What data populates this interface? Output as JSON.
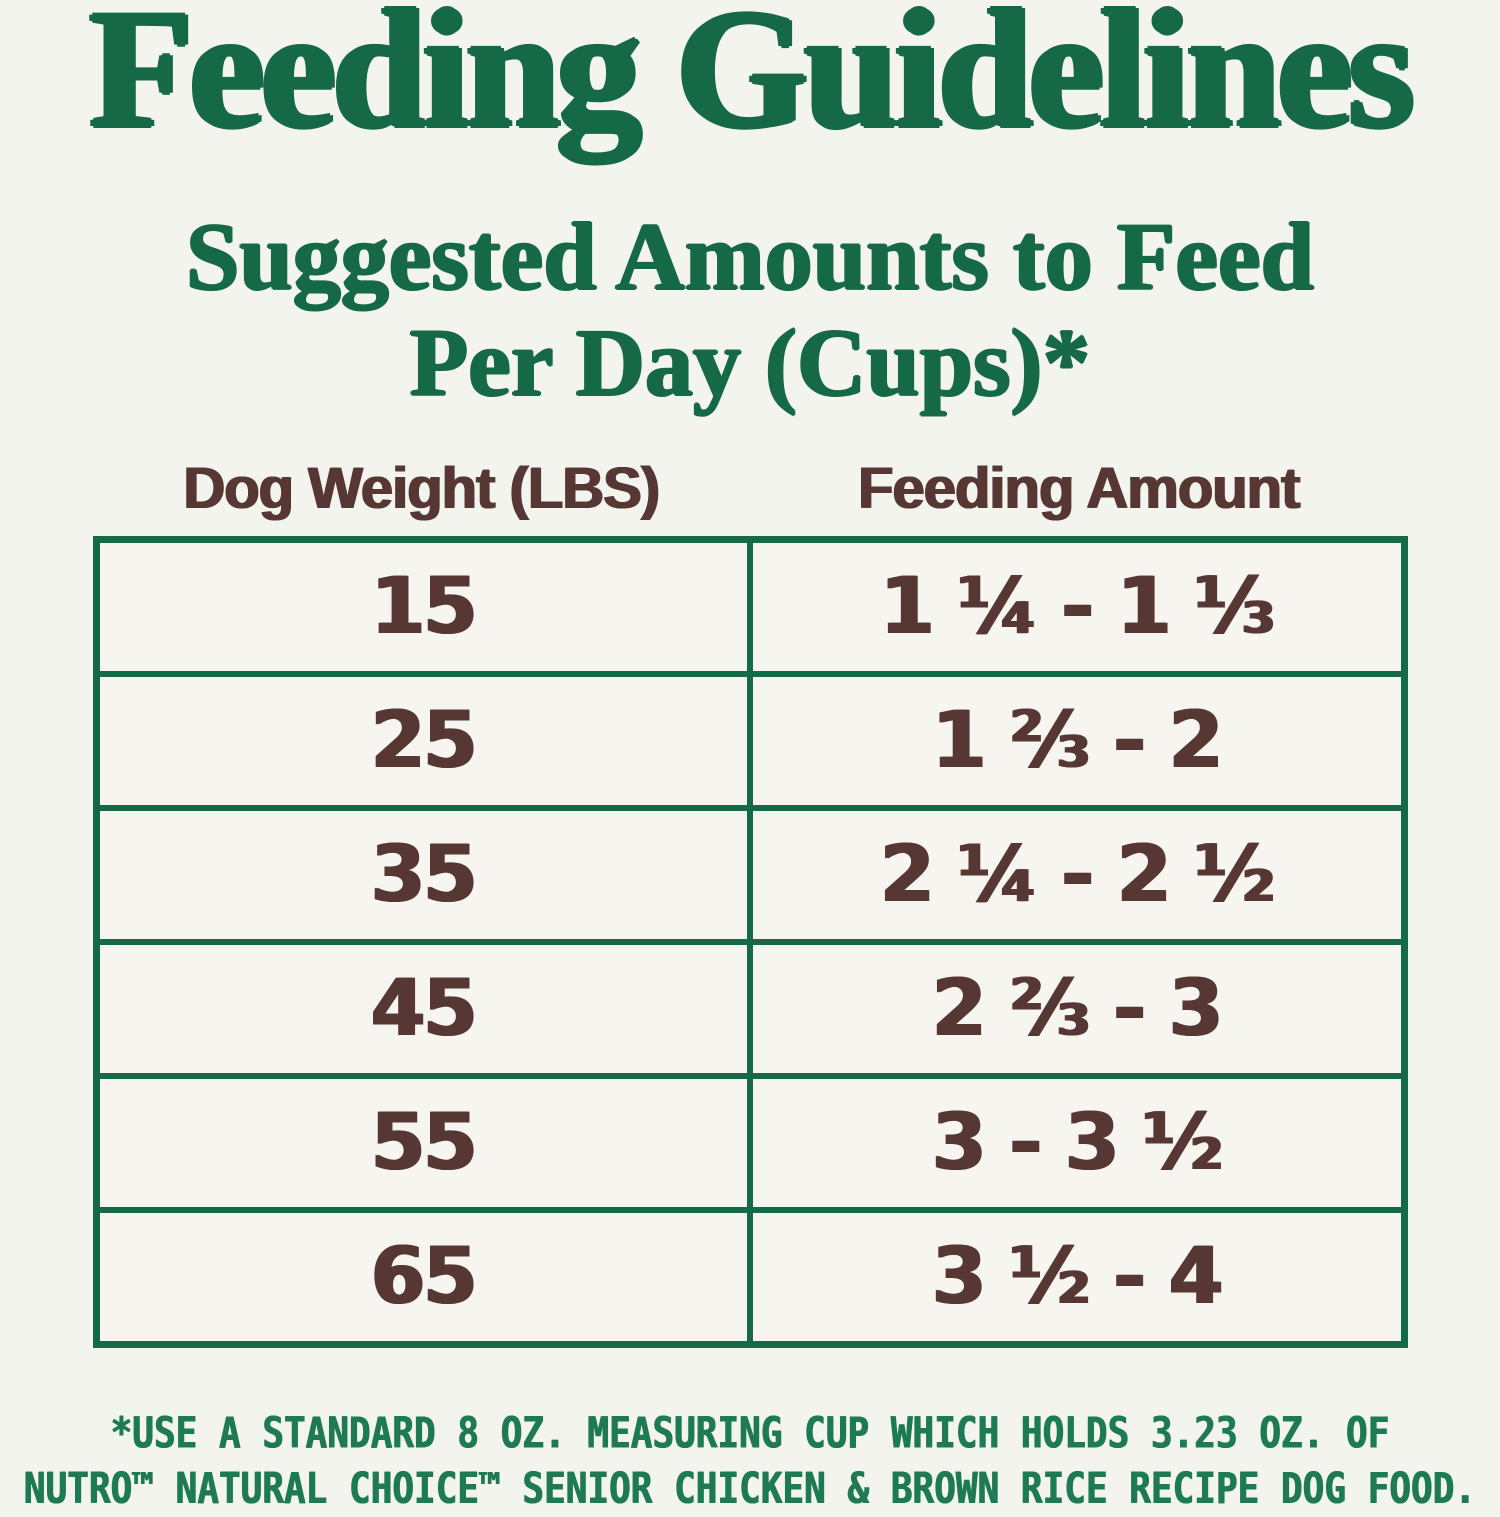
{
  "page": {
    "title": "Feeding Guidelines",
    "subtitle_line1": "Suggested Amounts to Feed",
    "subtitle_line2": "Per Day (Cups)*"
  },
  "chart_data": {
    "type": "table",
    "title": "Feeding Guidelines",
    "subtitle": "Suggested Amounts to Feed Per Day (Cups)*",
    "columns": [
      "Dog Weight (LBS)",
      "Feeding Amount"
    ],
    "rows": [
      [
        "15",
        "1 ¼ - 1 ⅓"
      ],
      [
        "25",
        "1 ⅔ - 2"
      ],
      [
        "35",
        "2 ¼ - 2 ½"
      ],
      [
        "45",
        "2 ⅔ - 3"
      ],
      [
        "55",
        "3 - 3 ½"
      ],
      [
        "65",
        "3 ½ - 4"
      ]
    ]
  },
  "footnote": {
    "line1": "*USE A STANDARD 8 OZ. MEASURING CUP WHICH HOLDS 3.23 OZ. OF",
    "line2": "NUTRO™ NATURAL CHOICE™ SENIOR CHICKEN & BROWN RICE RECIPE DOG FOOD."
  },
  "colors": {
    "heading_green": "#166947",
    "border_green": "#166947",
    "footnote_green": "#1e7a52",
    "text_maroon": "#573734",
    "background": "#f2f4ed",
    "cell_background": "#f6f5f0"
  }
}
